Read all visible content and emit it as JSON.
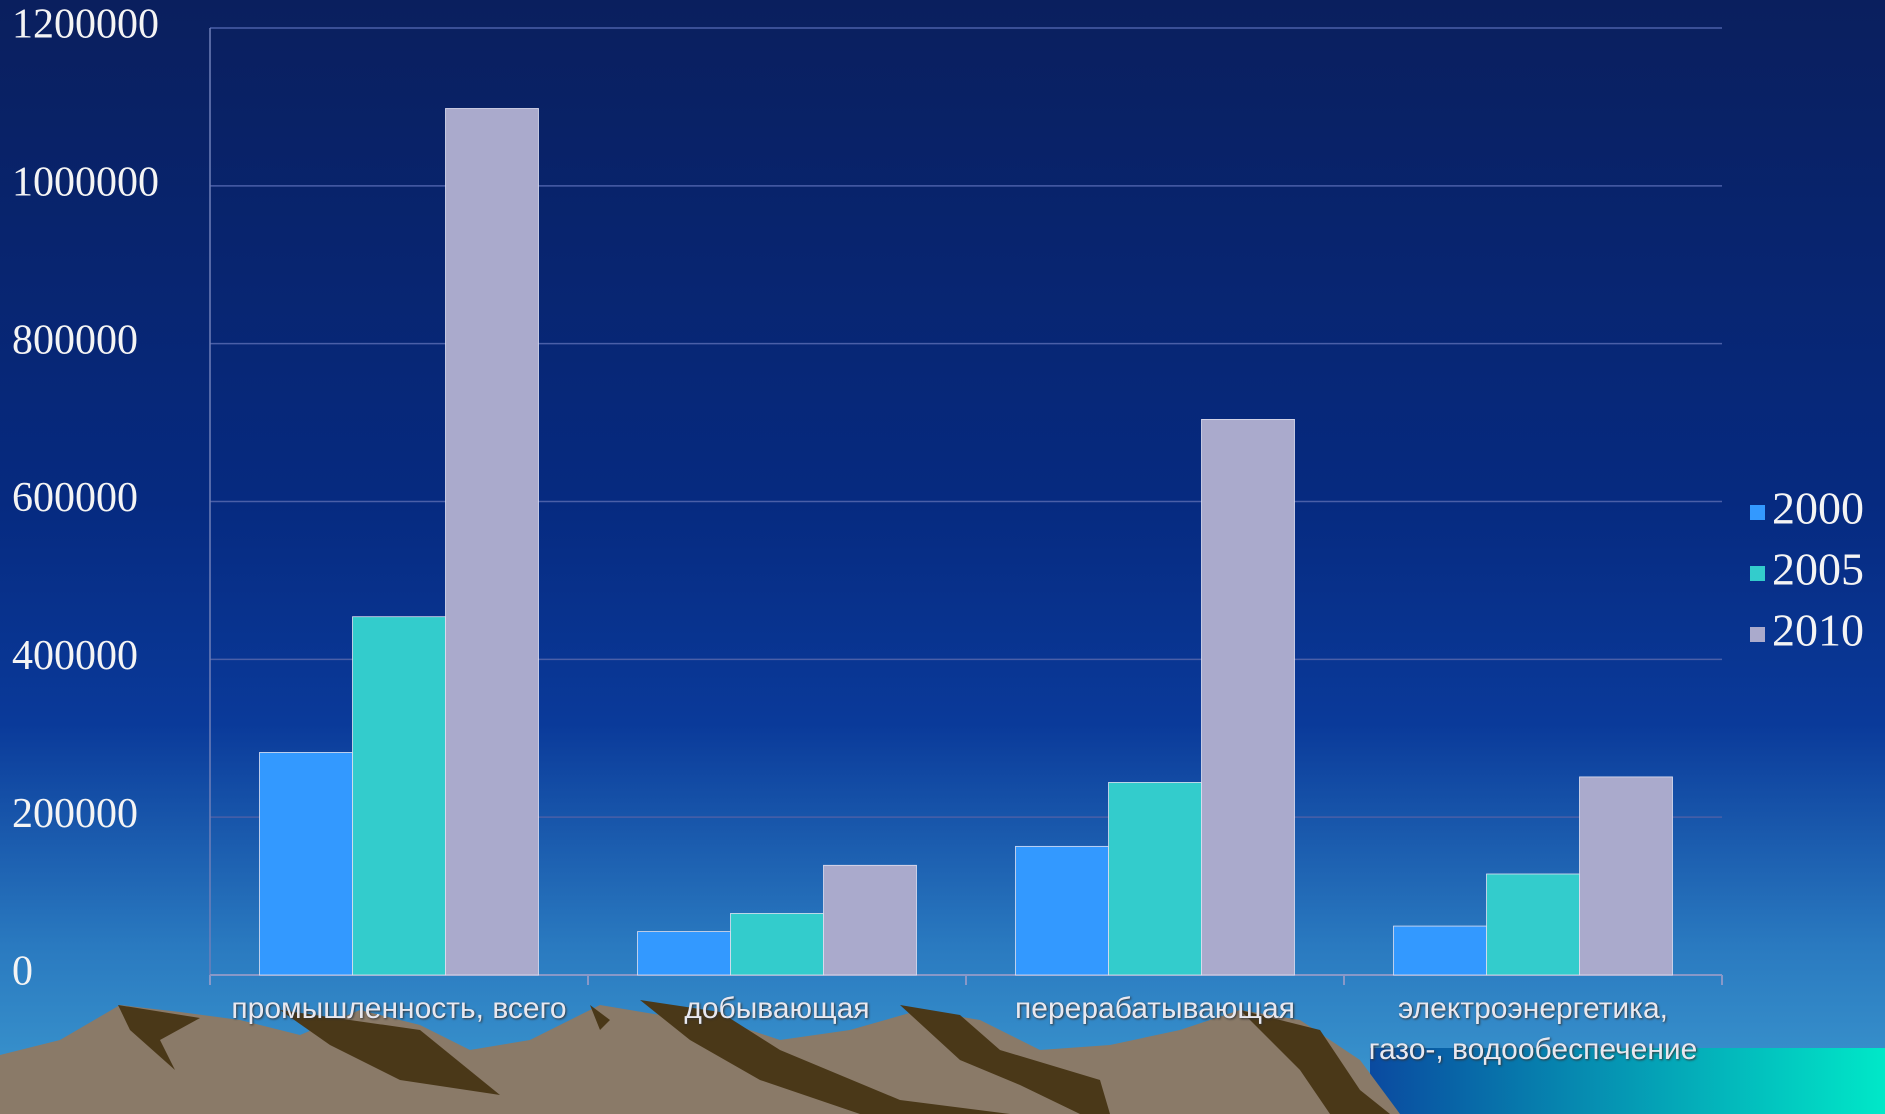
{
  "chart_data": {
    "type": "bar",
    "categories": [
      "промышленность, всего",
      "добывающая",
      "перерабатывающая",
      "электроэнергетика, газо-, водообеспечение"
    ],
    "series": [
      {
        "name": "2000",
        "color": "#3399ff",
        "values": [
          282000,
          55000,
          163000,
          62000
        ]
      },
      {
        "name": "2005",
        "color": "#33cccc",
        "values": [
          454000,
          78000,
          244000,
          128000
        ]
      },
      {
        "name": "2010",
        "color": "#aaaacc",
        "values": [
          1098000,
          139000,
          704000,
          251000
        ]
      }
    ],
    "ylim": [
      0,
      1200000
    ],
    "yticks": [
      0,
      200000,
      400000,
      600000,
      800000,
      1000000,
      1200000
    ],
    "grid": true,
    "legend": "right"
  }
}
